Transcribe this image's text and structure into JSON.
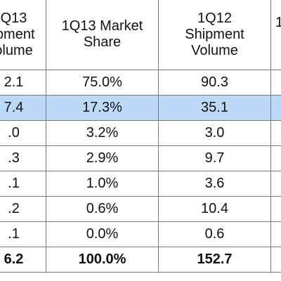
{
  "table": {
    "header": [
      [
        "Q13",
        "ipment",
        "olume"
      ],
      [
        "1Q13 Market",
        "Share"
      ],
      [
        "1Q12",
        "Shipment",
        "Volume"
      ],
      [
        "1"
      ]
    ],
    "rows": [
      [
        "2.1",
        "75.0%",
        "90.3"
      ],
      [
        "7.4",
        "17.3%",
        "35.1"
      ],
      [
        ".0",
        "3.2%",
        "3.0"
      ],
      [
        ".3",
        "2.9%",
        "9.7"
      ],
      [
        ".1",
        "1.0%",
        "3.6"
      ],
      [
        ".2",
        "0.6%",
        "10.4"
      ],
      [
        ".1",
        "0.0%",
        "0.6"
      ],
      [
        "6.2",
        "100.0%",
        "152.7"
      ]
    ]
  }
}
